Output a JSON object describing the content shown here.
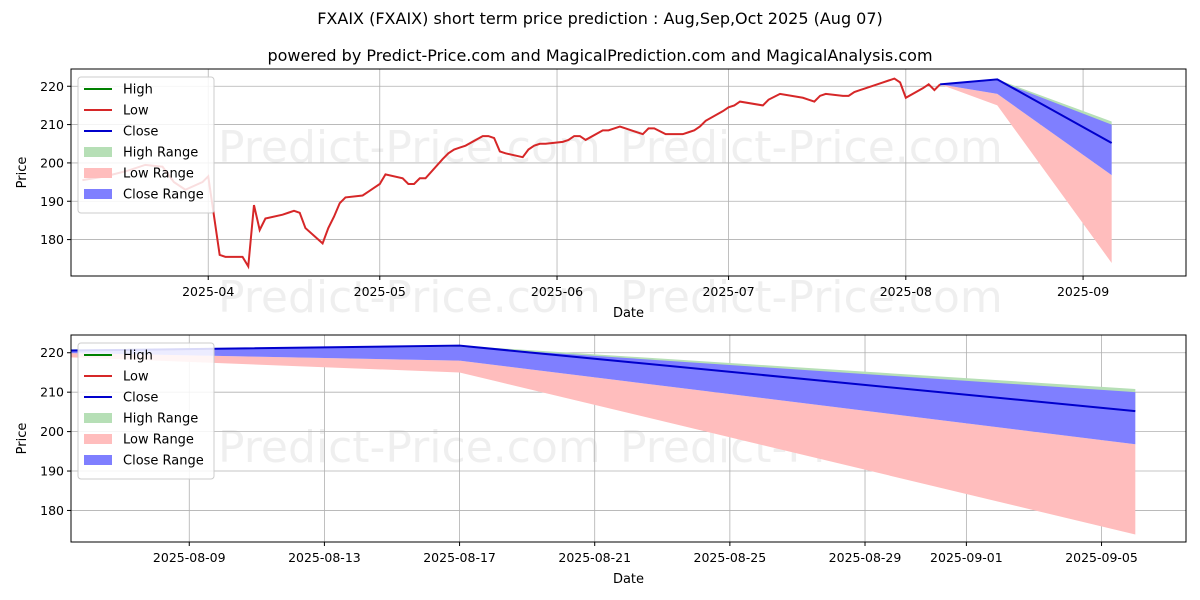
{
  "header": {
    "title": "FXAIX (FXAIX) short term price prediction : Aug,Sep,Oct 2025 (Aug 07)",
    "subtitle": "powered by Predict-Price.com and MagicalPrediction.com and MagicalAnalysis.com"
  },
  "watermark": "Predict-Price.com",
  "colors": {
    "high": "#008000",
    "low": "#d62728",
    "close": "#0000cc",
    "high_range": "#b6dfb6",
    "low_range": "#ffbdbd",
    "close_range": "#7f7fff",
    "grid": "#b0b0b0"
  },
  "legend": {
    "position": "upper-left",
    "items": [
      {
        "label": "High",
        "kind": "line",
        "color": "#008000"
      },
      {
        "label": "Low",
        "kind": "line",
        "color": "#d62728"
      },
      {
        "label": "Close",
        "kind": "line",
        "color": "#0000cc"
      },
      {
        "label": "High Range",
        "kind": "patch",
        "color": "#b6dfb6"
      },
      {
        "label": "Low Range",
        "kind": "patch",
        "color": "#ffbdbd"
      },
      {
        "label": "Close Range",
        "kind": "patch",
        "color": "#7f7fff"
      }
    ]
  },
  "chart_data": [
    {
      "type": "line",
      "xlabel": "Date",
      "ylabel": "Price",
      "xlim": [
        "2025-03-08",
        "2025-09-19"
      ],
      "ylim": [
        170.5,
        224.5
      ],
      "grid": true,
      "x_ticks": [
        "2025-04-01",
        "2025-05-01",
        "2025-06-01",
        "2025-07-01",
        "2025-08-01",
        "2025-09-01"
      ],
      "x_tick_labels": [
        "2025-04",
        "2025-05",
        "2025-06",
        "2025-07",
        "2025-08",
        "2025-09"
      ],
      "y_ticks": [
        180,
        190,
        200,
        210,
        220
      ],
      "history_low": [
        [
          "2025-03-10",
          195.5
        ],
        [
          "2025-03-14",
          196.5
        ],
        [
          "2025-03-18",
          198.0
        ],
        [
          "2025-03-21",
          199.5
        ],
        [
          "2025-03-24",
          199.0
        ],
        [
          "2025-03-26",
          195.0
        ],
        [
          "2025-03-28",
          193.0
        ],
        [
          "2025-03-31",
          195.0
        ],
        [
          "2025-04-01",
          196.5
        ],
        [
          "2025-04-03",
          176.0
        ],
        [
          "2025-04-04",
          175.5
        ],
        [
          "2025-04-07",
          175.5
        ],
        [
          "2025-04-08",
          173.0
        ],
        [
          "2025-04-09",
          189.0
        ],
        [
          "2025-04-10",
          182.5
        ],
        [
          "2025-04-11",
          185.5
        ],
        [
          "2025-04-14",
          186.5
        ],
        [
          "2025-04-15",
          187.0
        ],
        [
          "2025-04-16",
          187.5
        ],
        [
          "2025-04-17",
          187.0
        ],
        [
          "2025-04-18",
          183.0
        ],
        [
          "2025-04-21",
          179.0
        ],
        [
          "2025-04-22",
          183.0
        ],
        [
          "2025-04-23",
          186.0
        ],
        [
          "2025-04-24",
          189.5
        ],
        [
          "2025-04-25",
          191.0
        ],
        [
          "2025-04-28",
          191.5
        ],
        [
          "2025-04-29",
          192.5
        ],
        [
          "2025-04-30",
          193.5
        ],
        [
          "2025-05-01",
          194.5
        ],
        [
          "2025-05-02",
          197.0
        ],
        [
          "2025-05-05",
          196.0
        ],
        [
          "2025-05-06",
          194.5
        ],
        [
          "2025-05-07",
          194.5
        ],
        [
          "2025-05-08",
          196.0
        ],
        [
          "2025-05-09",
          196.0
        ],
        [
          "2025-05-12",
          201.0
        ],
        [
          "2025-05-13",
          202.5
        ],
        [
          "2025-05-14",
          203.5
        ],
        [
          "2025-05-15",
          204.0
        ],
        [
          "2025-05-16",
          204.5
        ],
        [
          "2025-05-19",
          207.0
        ],
        [
          "2025-05-20",
          207.0
        ],
        [
          "2025-05-21",
          206.5
        ],
        [
          "2025-05-22",
          203.0
        ],
        [
          "2025-05-23",
          202.5
        ],
        [
          "2025-05-26",
          201.5
        ],
        [
          "2025-05-27",
          203.5
        ],
        [
          "2025-05-28",
          204.5
        ],
        [
          "2025-05-29",
          205.0
        ],
        [
          "2025-05-30",
          205.0
        ],
        [
          "2025-06-02",
          205.5
        ],
        [
          "2025-06-03",
          206.0
        ],
        [
          "2025-06-04",
          207.0
        ],
        [
          "2025-06-05",
          207.0
        ],
        [
          "2025-06-06",
          206.0
        ],
        [
          "2025-06-09",
          208.5
        ],
        [
          "2025-06-10",
          208.5
        ],
        [
          "2025-06-11",
          209.0
        ],
        [
          "2025-06-12",
          209.5
        ],
        [
          "2025-06-13",
          209.0
        ],
        [
          "2025-06-16",
          207.5
        ],
        [
          "2025-06-17",
          209.0
        ],
        [
          "2025-06-18",
          209.0
        ],
        [
          "2025-06-20",
          207.5
        ],
        [
          "2025-06-23",
          207.5
        ],
        [
          "2025-06-24",
          208.0
        ],
        [
          "2025-06-25",
          208.5
        ],
        [
          "2025-06-26",
          209.5
        ],
        [
          "2025-06-27",
          211.0
        ],
        [
          "2025-06-30",
          213.5
        ],
        [
          "2025-07-01",
          214.5
        ],
        [
          "2025-07-02",
          215.0
        ],
        [
          "2025-07-03",
          216.0
        ],
        [
          "2025-07-07",
          215.0
        ],
        [
          "2025-07-08",
          216.5
        ],
        [
          "2025-07-10",
          218.0
        ],
        [
          "2025-07-14",
          217.0
        ],
        [
          "2025-07-15",
          216.5
        ],
        [
          "2025-07-16",
          216.0
        ],
        [
          "2025-07-17",
          217.5
        ],
        [
          "2025-07-18",
          218.0
        ],
        [
          "2025-07-21",
          217.5
        ],
        [
          "2025-07-22",
          217.5
        ],
        [
          "2025-07-23",
          218.5
        ],
        [
          "2025-07-24",
          219.0
        ],
        [
          "2025-07-25",
          219.5
        ],
        [
          "2025-07-28",
          221.0
        ],
        [
          "2025-07-29",
          221.5
        ],
        [
          "2025-07-30",
          222.0
        ],
        [
          "2025-07-31",
          221.0
        ],
        [
          "2025-08-01",
          217.0
        ],
        [
          "2025-08-04",
          219.5
        ],
        [
          "2025-08-05",
          220.5
        ],
        [
          "2025-08-06",
          219.0
        ],
        [
          "2025-08-07",
          220.5
        ]
      ],
      "forecast": {
        "x": [
          "2025-08-07",
          "2025-08-17",
          "2025-09-06"
        ],
        "close": [
          220.5,
          221.8,
          205.2
        ],
        "high_range": {
          "upper": [
            220.5,
            221.8,
            210.8
          ],
          "lower": [
            220.5,
            219.0,
            205.2
          ]
        },
        "close_range": {
          "upper": [
            220.5,
            221.5,
            210.0
          ],
          "lower": [
            220.5,
            218.0,
            196.8
          ]
        },
        "low_range": {
          "upper": [
            220.5,
            218.0,
            196.8
          ],
          "lower": [
            220.5,
            215.0,
            173.9
          ]
        }
      }
    },
    {
      "type": "line",
      "xlabel": "Date",
      "ylabel": "Price",
      "xlim": [
        "2025-08-05.5",
        "2025-09-07.5"
      ],
      "ylim": [
        172.0,
        224.5
      ],
      "grid": true,
      "x_ticks": [
        "2025-08-09",
        "2025-08-13",
        "2025-08-17",
        "2025-08-21",
        "2025-08-25",
        "2025-08-29",
        "2025-09-01",
        "2025-09-05"
      ],
      "x_tick_labels": [
        "2025-08-09",
        "2025-08-13",
        "2025-08-17",
        "2025-08-21",
        "2025-08-25",
        "2025-08-29",
        "2025-09-01",
        "2025-09-05"
      ],
      "y_ticks": [
        180,
        190,
        200,
        210,
        220
      ],
      "forecast": {
        "x": [
          "2025-08-05",
          "2025-08-17",
          "2025-09-06"
        ],
        "close": [
          220.5,
          221.8,
          205.2
        ],
        "high_range": {
          "upper": [
            220.8,
            221.8,
            210.8
          ],
          "lower": [
            220.3,
            219.0,
            205.2
          ]
        },
        "close_range": {
          "upper": [
            220.6,
            221.5,
            210.0
          ],
          "lower": [
            220.0,
            218.0,
            196.8
          ]
        },
        "low_range": {
          "upper": [
            220.0,
            218.0,
            196.8
          ],
          "lower": [
            219.0,
            215.0,
            173.9
          ]
        }
      }
    }
  ]
}
